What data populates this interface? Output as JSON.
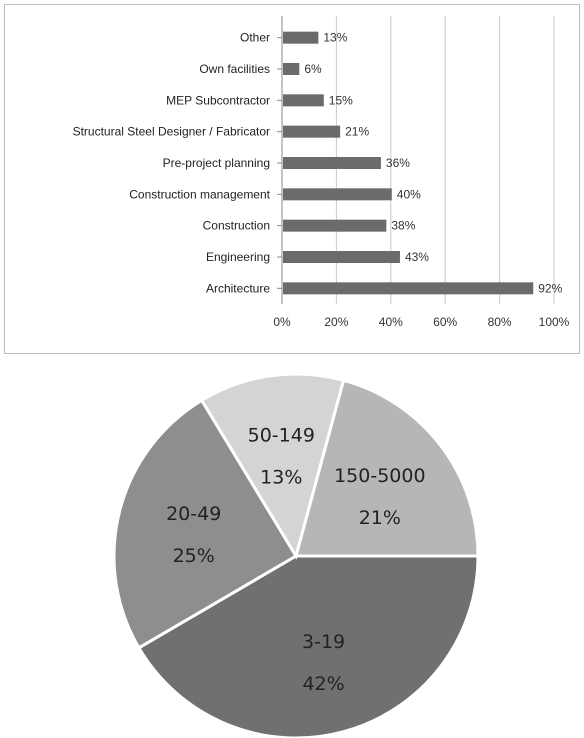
{
  "chart_data": [
    {
      "type": "bar",
      "orientation": "horizontal",
      "categories": [
        "Other",
        "Own facilities",
        "MEP Subcontractor",
        "Structural Steel Designer / Fabricator",
        "Pre-project planning",
        "Construction management",
        "Construction",
        "Engineering",
        "Architecture"
      ],
      "values": [
        13,
        6,
        15,
        21,
        36,
        40,
        38,
        43,
        92
      ],
      "value_labels": [
        "13%",
        "6%",
        "15%",
        "21%",
        "36%",
        "40%",
        "38%",
        "43%",
        "92%"
      ],
      "xlim": [
        0,
        100
      ],
      "x_ticks": [
        "0%",
        "20%",
        "40%",
        "60%",
        "80%",
        "100%"
      ],
      "grid": "vertical",
      "bar_color": "#6b6b6b",
      "title": "",
      "xlabel": "",
      "ylabel": ""
    },
    {
      "type": "pie",
      "slices": [
        {
          "label": "3-19",
          "value": 42,
          "value_label": "42%",
          "color": "#707070"
        },
        {
          "label": "20-49",
          "value": 25,
          "value_label": "25%",
          "color": "#8e8e8e"
        },
        {
          "label": "50-149",
          "value": 13,
          "value_label": "13%",
          "color": "#d4d4d4"
        },
        {
          "label": "150-5000",
          "value": 21,
          "value_label": "21%",
          "color": "#b6b6b6"
        }
      ],
      "title": ""
    }
  ]
}
